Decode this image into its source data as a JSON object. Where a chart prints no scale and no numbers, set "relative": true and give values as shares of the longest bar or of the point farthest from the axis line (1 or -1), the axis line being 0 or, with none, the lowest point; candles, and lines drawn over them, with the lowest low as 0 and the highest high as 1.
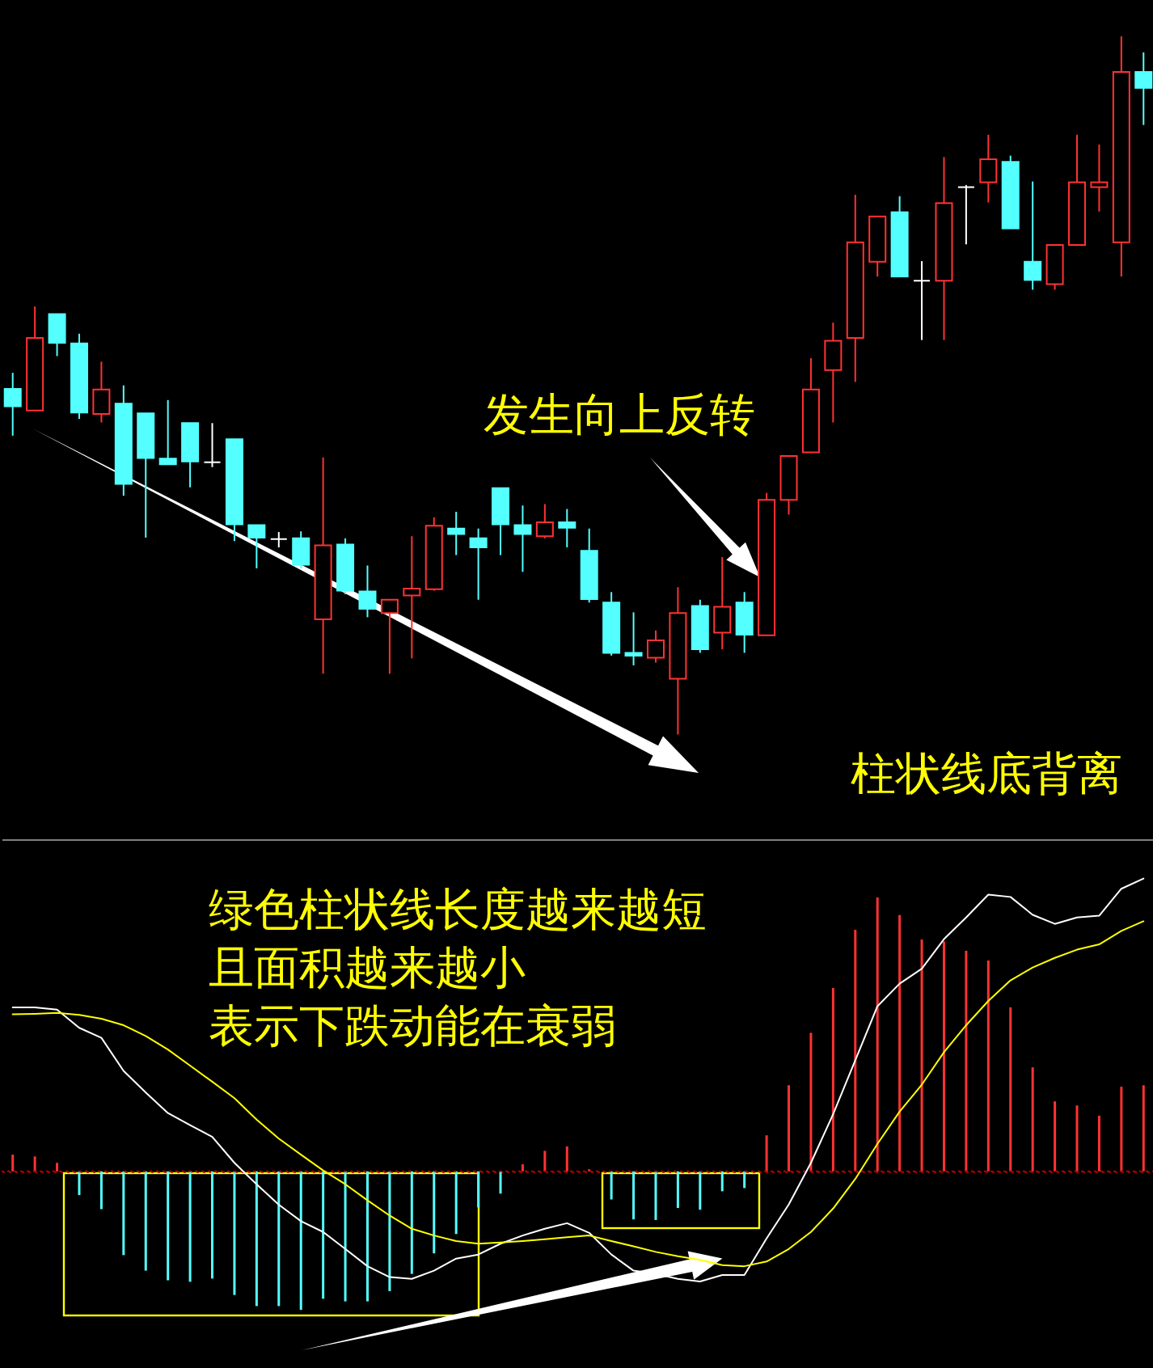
{
  "chart_data": [
    {
      "type": "candlestick",
      "relative": true,
      "categories": [
        null,
        null,
        null,
        null,
        null,
        null,
        null,
        null,
        null,
        null,
        null,
        null,
        null,
        null,
        null,
        null,
        null,
        null,
        null,
        null,
        null,
        null,
        null,
        null,
        null,
        null,
        null,
        null,
        null,
        null,
        null,
        null,
        null,
        null,
        null,
        null,
        null,
        null,
        null,
        null,
        null,
        null,
        null,
        null,
        null,
        null,
        null,
        null,
        null,
        null,
        null,
        null
      ],
      "ohlc": [
        [
          0.495,
          0.518,
          0.428,
          0.47
        ],
        [
          0.464,
          0.613,
          0.464,
          0.568
        ],
        [
          0.602,
          0.602,
          0.542,
          0.561
        ],
        [
          0.56,
          0.574,
          0.452,
          0.461
        ],
        [
          0.459,
          0.534,
          0.447,
          0.494
        ],
        [
          0.474,
          0.5,
          0.342,
          0.359
        ],
        [
          0.46,
          0.46,
          0.282,
          0.396
        ],
        [
          0.395,
          0.479,
          0.387,
          0.387
        ],
        [
          0.446,
          0.446,
          0.354,
          0.391
        ],
        [
          0.39,
          0.446,
          0.383,
          0.39
        ],
        [
          0.423,
          0.423,
          0.277,
          0.301
        ],
        [
          0.3,
          0.3,
          0.238,
          0.282
        ],
        [
          0.28,
          0.29,
          0.268,
          0.28
        ],
        [
          0.281,
          0.291,
          0.238,
          0.243
        ],
        [
          0.165,
          0.397,
          0.087,
          0.271
        ],
        [
          0.272,
          0.281,
          0.201,
          0.206
        ],
        [
          0.205,
          0.242,
          0.168,
          0.18
        ],
        [
          0.174,
          0.193,
          0.087,
          0.193
        ],
        [
          0.199,
          0.284,
          0.109,
          0.209
        ],
        [
          0.208,
          0.311,
          0.206,
          0.299
        ],
        [
          0.295,
          0.319,
          0.257,
          0.287
        ],
        [
          0.281,
          0.295,
          0.193,
          0.268
        ],
        [
          0.353,
          0.353,
          0.257,
          0.301
        ],
        [
          0.3,
          0.328,
          0.233,
          0.287
        ],
        [
          0.284,
          0.33,
          0.281,
          0.304
        ],
        [
          0.304,
          0.323,
          0.268,
          0.296
        ],
        [
          0.263,
          0.295,
          0.189,
          0.194
        ],
        [
          0.189,
          0.204,
          0.113,
          0.117
        ],
        [
          0.117,
          0.175,
          0.099,
          0.113
        ],
        [
          0.11,
          0.149,
          0.103,
          0.135
        ],
        [
          0.08,
          0.211,
          0,
          0.174
        ],
        [
          0.184,
          0.193,
          0.117,
          0.122
        ],
        [
          0.146,
          0.254,
          0.122,
          0.183
        ],
        [
          0.189,
          0.204,
          0.117,
          0.143
        ],
        [
          0.142,
          0.346,
          0.142,
          0.336
        ],
        [
          0.336,
          0.399,
          0.315,
          0.399
        ],
        [
          0.404,
          0.539,
          0.404,
          0.494
        ],
        [
          0.522,
          0.59,
          0.447,
          0.564
        ],
        [
          0.568,
          0.773,
          0.505,
          0.705
        ],
        [
          0.677,
          0.742,
          0.656,
          0.742
        ],
        [
          0.748,
          0.771,
          0.656,
          0.656
        ],
        [
          0.65,
          0.678,
          0.565,
          0.65
        ],
        [
          0.65,
          0.827,
          0.565,
          0.761
        ],
        [
          0.784,
          0.787,
          0.702,
          0.784
        ],
        [
          0.791,
          0.859,
          0.762,
          0.824
        ],
        [
          0.82,
          0.829,
          0.725,
          0.725
        ],
        [
          0.677,
          0.792,
          0.637,
          0.651
        ],
        [
          0.645,
          0.701,
          0.637,
          0.701
        ],
        [
          0.701,
          0.859,
          0.701,
          0.791
        ],
        [
          0.784,
          0.845,
          0.749,
          0.791
        ],
        [
          0.705,
          1,
          0.656,
          0.949
        ],
        [
          0.949,
          0.977,
          0.873,
          0.926
        ]
      ],
      "colors": [
        "#54ffff",
        "#ff3232",
        "#54ffff",
        "#54ffff",
        "#ff3232",
        "#54ffff",
        "#54ffff",
        "#54ffff",
        "#54ffff",
        "#ffffff",
        "#54ffff",
        "#54ffff",
        "#ffffff",
        "#54ffff",
        "#ff3232",
        "#54ffff",
        "#54ffff",
        "#ff3232",
        "#ff3232",
        "#ff3232",
        "#54ffff",
        "#54ffff",
        "#54ffff",
        "#54ffff",
        "#ff3232",
        "#54ffff",
        "#54ffff",
        "#54ffff",
        "#54ffff",
        "#ff3232",
        "#ff3232",
        "#54ffff",
        "#ff3232",
        "#54ffff",
        "#ff3232",
        "#ff3232",
        "#ff3232",
        "#ff3232",
        "#ff3232",
        "#ff3232",
        "#54ffff",
        "#ffffff",
        "#ff3232",
        "#ffffff",
        "#ff3232",
        "#54ffff",
        "#54ffff",
        "#ff3232",
        "#ff3232",
        "#ff3232",
        "#ff3232",
        "#54ffff"
      ],
      "annotations": [
        "发生向上反转",
        "柱状线底背离"
      ]
    },
    {
      "type": "bar",
      "relative": true,
      "categories": [
        null,
        null,
        null,
        null,
        null,
        null,
        null,
        null,
        null,
        null,
        null,
        null,
        null,
        null,
        null,
        null,
        null,
        null,
        null,
        null,
        null,
        null,
        null,
        null,
        null,
        null,
        null,
        null,
        null,
        null,
        null,
        null,
        null,
        null,
        null,
        null,
        null,
        null,
        null,
        null,
        null,
        null,
        null,
        null,
        null,
        null,
        null,
        null,
        null,
        null,
        null,
        null
      ],
      "series": [
        {
          "type": "bar",
          "values": [
            0.057,
            0.051,
            0.029,
            -0.081,
            -0.129,
            -0.286,
            -0.339,
            -0.372,
            -0.377,
            -0.366,
            -0.422,
            -0.46,
            -0.46,
            -0.473,
            -0.435,
            -0.444,
            -0.444,
            -0.409,
            -0.35,
            -0.28,
            -0.214,
            -0.123,
            -0.076,
            0.024,
            0.07,
            0.085,
            0.007,
            -0.096,
            -0.164,
            -0.166,
            -0.125,
            -0.131,
            -0.068,
            -0.057,
            0.123,
            0.294,
            0.473,
            0.626,
            0.825,
            0.935,
            0.875,
            0.792,
            0.785,
            0.753,
            0.72,
            0.56,
            0.355,
            0.239,
            0.225,
            0.19,
            0.289,
            0.294
          ],
          "colors": [
            "#ff3232",
            "#ff3232",
            "#ff3232",
            "#54ffff",
            "#54ffff",
            "#54ffff",
            "#54ffff",
            "#54ffff",
            "#54ffff",
            "#54ffff",
            "#54ffff",
            "#54ffff",
            "#54ffff",
            "#54ffff",
            "#54ffff",
            "#54ffff",
            "#54ffff",
            "#54ffff",
            "#54ffff",
            "#54ffff",
            "#54ffff",
            "#54ffff",
            "#54ffff",
            "#ff3232",
            "#ff3232",
            "#ff3232",
            "#ff3232",
            "#54ffff",
            "#54ffff",
            "#54ffff",
            "#54ffff",
            "#54ffff",
            "#54ffff",
            "#54ffff",
            "#ff3232",
            "#ff3232",
            "#ff3232",
            "#ff3232",
            "#ff3232",
            "#ff3232",
            "#ff3232",
            "#ff3232",
            "#ff3232",
            "#ff3232",
            "#ff3232",
            "#ff3232",
            "#ff3232",
            "#ff3232",
            "#ff3232",
            "#ff3232",
            "#ff3232",
            "#ff3232"
          ]
        },
        {
          "type": "line",
          "color": "#ffffff",
          "values": [
            0.56,
            0.56,
            0.552,
            0.49,
            0.456,
            0.343,
            0.269,
            0.199,
            0.158,
            0.118,
            0.029,
            -0.044,
            -0.114,
            -0.17,
            -0.207,
            -0.265,
            -0.324,
            -0.361,
            -0.367,
            -0.339,
            -0.298,
            -0.284,
            -0.247,
            -0.219,
            -0.196,
            -0.177,
            -0.21,
            -0.284,
            -0.339,
            -0.35,
            -0.367,
            -0.376,
            -0.354,
            -0.354,
            -0.229,
            -0.113,
            0.029,
            0.195,
            0.379,
            0.564,
            0.641,
            0.692,
            0.793,
            0.867,
            0.945,
            0.937,
            0.876,
            0.845,
            0.867,
            0.873,
            0.965,
            1
          ]
        },
        {
          "type": "line",
          "color": "#ffff00",
          "values": [
            0.536,
            0.538,
            0.541,
            0.534,
            0.521,
            0.499,
            0.462,
            0.416,
            0.361,
            0.306,
            0.25,
            0.177,
            0.112,
            0.057,
            0.003,
            -0.044,
            -0.099,
            -0.151,
            -0.196,
            -0.219,
            -0.238,
            -0.247,
            -0.243,
            -0.238,
            -0.232,
            -0.225,
            -0.219,
            -0.238,
            -0.256,
            -0.275,
            -0.29,
            -0.302,
            -0.32,
            -0.324,
            -0.308,
            -0.265,
            -0.207,
            -0.127,
            -0.026,
            0.094,
            0.204,
            0.296,
            0.407,
            0.499,
            0.582,
            0.652,
            0.696,
            0.729,
            0.757,
            0.775,
            0.821,
            0.854
          ]
        }
      ],
      "ref_lines": [
        {
          "axis": "y",
          "value": 0,
          "color": "#b40000",
          "line_style": "dotted"
        }
      ],
      "annotations": [
        "绿色柱状线长度越来越短",
        "且面积越来越小",
        "表示下跌动能在衰弱"
      ]
    }
  ]
}
